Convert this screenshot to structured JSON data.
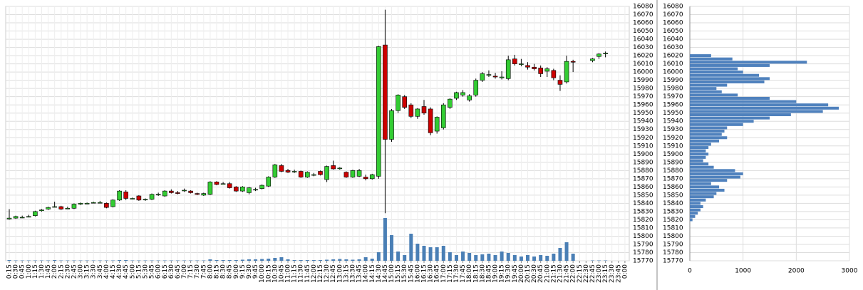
{
  "chart_data": [
    {
      "type": "candlestick",
      "categories": [
        "0:15",
        "0:30",
        "0:45",
        "1:00",
        "1:15",
        "1:30",
        "1:45",
        "2:00",
        "2:15",
        "2:30",
        "2:45",
        "3:00",
        "3:15",
        "3:30",
        "3:45",
        "4:00",
        "4:15",
        "4:30",
        "4:45",
        "5:00",
        "5:15",
        "5:30",
        "5:45",
        "6:00",
        "6:15",
        "6:30",
        "6:45",
        "7:00",
        "7:15",
        "7:30",
        "7:45",
        "8:00",
        "8:15",
        "8:30",
        "8:45",
        "9:00",
        "9:15",
        "9:30",
        "9:45",
        "10:00",
        "10:15",
        "10:30",
        "10:45",
        "11:00",
        "11:15",
        "11:30",
        "11:45",
        "12:00",
        "12:15",
        "12:30",
        "12:45",
        "13:00",
        "13:15",
        "13:30",
        "13:45",
        "14:00",
        "14:15",
        "14:30",
        "14:45",
        "15:00",
        "15:15",
        "15:30",
        "15:45",
        "16:00",
        "16:15",
        "16:30",
        "16:45",
        "17:00",
        "17:15",
        "17:30",
        "17:45",
        "18:00",
        "18:15",
        "18:30",
        "18:45",
        "19:00",
        "19:15",
        "19:30",
        "19:45",
        "20:00",
        "20:15",
        "20:30",
        "20:45",
        "21:00",
        "21:15",
        "21:30",
        "21:45",
        "22:00",
        "22:15",
        "22:30",
        "22:45",
        "23:00",
        "23:15",
        "23:30",
        "23:45",
        "0:00"
      ],
      "open": [
        15821,
        15822,
        15823,
        15824,
        15825,
        15831,
        15833,
        15836,
        15836,
        15834,
        15834,
        15839,
        15840,
        15841,
        15841,
        15840,
        15836,
        15844,
        15854,
        15846,
        15849,
        15845,
        15845,
        15851,
        15849,
        15855,
        15853,
        15856,
        15855,
        15852,
        15850,
        15851,
        15866,
        15864,
        15864,
        15860,
        15855,
        15853,
        15857,
        15858,
        15861,
        15872,
        15886,
        15880,
        15879,
        15879,
        15872,
        15875,
        15879,
        15869,
        15886,
        15883,
        15878,
        15872,
        15873,
        15872,
        15870,
        15873,
        16033,
        15918,
        15953,
        15970,
        15960,
        15946,
        15958,
        15955,
        15928,
        15932,
        15957,
        15968,
        15972,
        15966,
        15972,
        15990,
        15996,
        15995,
        15993,
        15992,
        16016,
        16010,
        16008,
        16006,
        16005,
        16001,
        16002,
        15990,
        15988,
        16013,
        null,
        null,
        16014,
        16019,
        16023,
        null,
        null,
        null
      ],
      "high": [
        15833,
        15825,
        15825,
        15826,
        15831,
        15833,
        15836,
        15842,
        15837,
        15836,
        15840,
        15841,
        15841,
        15842,
        15843,
        15841,
        15845,
        15856,
        15856,
        15847,
        15850,
        15846,
        15852,
        15853,
        15856,
        15857,
        15855,
        15858,
        15856,
        15853,
        15853,
        15867,
        15867,
        15866,
        15866,
        15861,
        15861,
        15860,
        15859,
        15863,
        15873,
        15888,
        15888,
        15882,
        15881,
        15880,
        15879,
        15877,
        15880,
        15886,
        15892,
        15884,
        15879,
        15881,
        15882,
        15875,
        15876,
        16032,
        16076,
        15955,
        15973,
        15972,
        15962,
        15956,
        15966,
        15957,
        15946,
        15962,
        15968,
        15976,
        15978,
        15973,
        15992,
        16000,
        16002,
        15999,
        16001,
        16020,
        16021,
        16016,
        16012,
        16010,
        16008,
        16006,
        16004,
        15996,
        16020,
        16015,
        null,
        null,
        16017,
        16023,
        16025,
        null,
        null,
        null
      ],
      "low": [
        15820,
        15821,
        15822,
        15823,
        15824,
        15830,
        15832,
        15835,
        15832,
        15833,
        15833,
        15838,
        15839,
        15840,
        15840,
        15834,
        15835,
        15843,
        15844,
        15845,
        15843,
        15843,
        15844,
        15849,
        15848,
        15852,
        15851,
        15854,
        15852,
        15850,
        15849,
        15850,
        15862,
        15863,
        15858,
        15854,
        15854,
        15851,
        15855,
        15857,
        15860,
        15871,
        15878,
        15877,
        15877,
        15871,
        15871,
        15873,
        15874,
        15866,
        15881,
        15881,
        15871,
        15871,
        15872,
        15868,
        15869,
        15870,
        15828,
        15915,
        15950,
        15955,
        15944,
        15943,
        15948,
        15923,
        15925,
        15930,
        15955,
        15966,
        15970,
        15964,
        15970,
        15988,
        15994,
        15992,
        15991,
        15990,
        16008,
        16007,
        16003,
        16002,
        15994,
        15994,
        15990,
        15977,
        15986,
        16000,
        null,
        null,
        16012,
        16016,
        16018,
        null,
        null,
        null
      ],
      "close": [
        15822,
        15824,
        15823,
        15824,
        15830,
        15832,
        15835,
        15836,
        15833,
        15834,
        15839,
        15840,
        15840,
        15841,
        15841,
        15835,
        15844,
        15855,
        15846,
        15846,
        15844,
        15845,
        15851,
        15851,
        15855,
        15853,
        15852,
        15856,
        15853,
        15851,
        15852,
        15866,
        15863,
        15864,
        15859,
        15855,
        15860,
        15859,
        15857,
        15862,
        15872,
        15887,
        15879,
        15878,
        15879,
        15872,
        15878,
        15875,
        15875,
        15885,
        15882,
        15883,
        15872,
        15880,
        15880,
        15870,
        15875,
        16031,
        15918,
        15953,
        15972,
        15957,
        15946,
        15955,
        15950,
        15926,
        15945,
        15960,
        15967,
        15975,
        15975,
        15971,
        15990,
        15998,
        15997,
        15994,
        15994,
        16015,
        16010,
        16010,
        16006,
        16004,
        15998,
        16004,
        15993,
        15985,
        16013,
        16012,
        null,
        null,
        16016,
        16022,
        16023,
        null,
        null,
        null
      ],
      "volume": [
        1,
        0.5,
        0.5,
        0.5,
        0.5,
        0.5,
        0.5,
        1,
        0.5,
        0.5,
        0.5,
        0.5,
        0.5,
        0.5,
        0.5,
        0.5,
        0.5,
        1,
        1,
        0.5,
        0.5,
        0.5,
        0.5,
        0.5,
        0.5,
        0.5,
        0.5,
        0.5,
        0.5,
        0.5,
        0.5,
        2,
        1,
        1,
        1,
        1,
        1.5,
        2,
        2,
        2.5,
        3,
        4,
        5,
        2,
        1,
        1,
        1,
        1,
        1,
        1.5,
        2,
        2.5,
        2,
        1.5,
        2,
        5,
        3,
        12,
        60,
        36,
        13,
        8,
        38,
        24,
        21,
        19,
        19,
        21,
        12,
        8,
        13,
        11,
        8,
        9,
        10,
        8,
        13,
        11,
        8,
        6,
        8,
        6,
        8,
        7,
        10,
        18,
        26,
        10,
        null,
        null,
        0.5,
        0.5,
        0.5,
        null,
        null,
        null
      ],
      "up_color": "#33cc33",
      "down_color": "#cc0000",
      "volume_color": "#4a7fb5",
      "ylim": [
        15770,
        16080
      ],
      "yticks": [
        15770,
        15780,
        15790,
        15800,
        15810,
        15820,
        15830,
        15840,
        15850,
        15860,
        15870,
        15880,
        15890,
        15900,
        15910,
        15920,
        15930,
        15940,
        15950,
        15960,
        15970,
        15980,
        15990,
        16000,
        16010,
        16020,
        16030,
        16040,
        16050,
        16060,
        16070,
        16080
      ],
      "grid": true
    },
    {
      "type": "profile",
      "y": [
        15820,
        15824,
        15828,
        15832,
        15836,
        15840,
        15844,
        15848,
        15852,
        15856,
        15860,
        15864,
        15868,
        15872,
        15876,
        15880,
        15884,
        15888,
        15892,
        15896,
        15900,
        15904,
        15908,
        15912,
        15916,
        15920,
        15924,
        15928,
        15932,
        15936,
        15940,
        15944,
        15948,
        15952,
        15956,
        15960,
        15964,
        15968,
        15972,
        15976,
        15980,
        15984,
        15988,
        15992,
        15996,
        16000,
        16004,
        16008,
        16012,
        16016,
        16020
      ],
      "values": [
        50,
        100,
        150,
        200,
        250,
        200,
        300,
        450,
        500,
        650,
        550,
        400,
        700,
        950,
        1000,
        850,
        450,
        350,
        250,
        300,
        350,
        300,
        350,
        400,
        550,
        700,
        600,
        650,
        700,
        1000,
        1200,
        1500,
        1900,
        2500,
        2800,
        2600,
        2000,
        1500,
        900,
        600,
        500,
        700,
        1400,
        1500,
        1300,
        1000,
        900,
        1500,
        2200,
        800,
        400
      ],
      "color": "#4f81bd",
      "xlim": [
        0,
        3000
      ],
      "xticks": [
        0,
        1000,
        2000,
        3000
      ],
      "ylim": [
        15770,
        16080
      ],
      "yticks": [
        15770,
        15780,
        15790,
        15800,
        15810,
        15820,
        15830,
        15840,
        15850,
        15860,
        15870,
        15880,
        15890,
        15900,
        15910,
        15920,
        15930,
        15940,
        15950,
        15960,
        15970,
        15980,
        15990,
        16000,
        16010,
        16020,
        16030,
        16040,
        16050,
        16060,
        16070,
        16080
      ],
      "grid": true
    }
  ]
}
